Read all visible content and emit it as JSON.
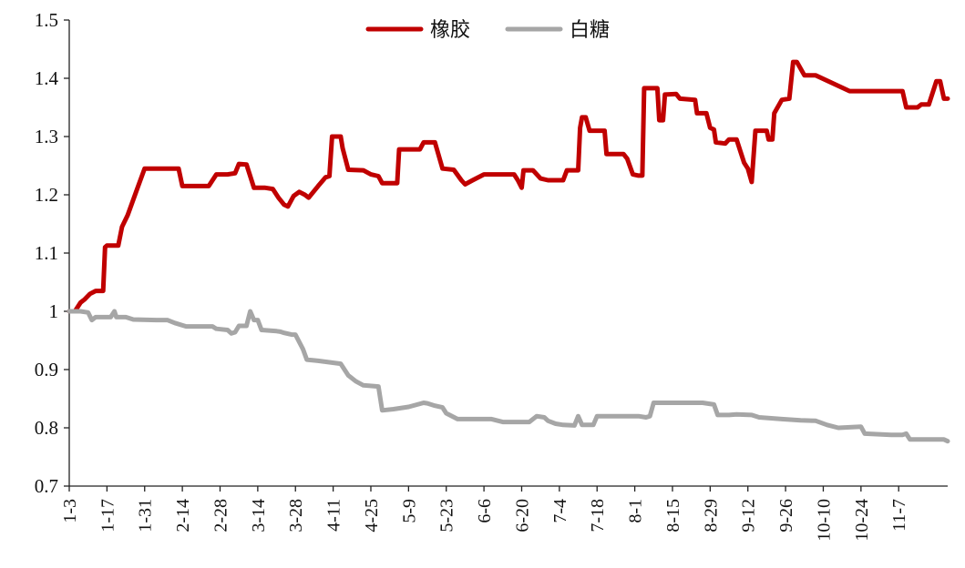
{
  "chart_data": {
    "type": "line",
    "title": "",
    "xlabel": "",
    "ylabel": "",
    "ylim": [
      0.7,
      1.5
    ],
    "yticks": [
      "0.7",
      "0.8",
      "0.9",
      "1",
      "1.1",
      "1.2",
      "1.3",
      "1.4",
      "1.5"
    ],
    "xticks": [
      "1-3",
      "1-17",
      "1-31",
      "2-14",
      "2-28",
      "3-14",
      "3-28",
      "4-11",
      "4-25",
      "5-9",
      "5-23",
      "6-6",
      "6-20",
      "7-4",
      "7-18",
      "8-1",
      "8-15",
      "8-29",
      "9-12",
      "9-26",
      "10-10",
      "10-24",
      "11-7"
    ],
    "grid": false,
    "legend_position": "top-center",
    "series": [
      {
        "name": "橡胶",
        "color": "#c00000",
        "points": [
          [
            0,
            1.0
          ],
          [
            1.5,
            1.0
          ],
          [
            3,
            1.015
          ],
          [
            4,
            1.02
          ],
          [
            5.5,
            1.03
          ],
          [
            7,
            1.035
          ],
          [
            9,
            1.035
          ],
          [
            9.5,
            1.11
          ],
          [
            10,
            1.113
          ],
          [
            13,
            1.113
          ],
          [
            14,
            1.145
          ],
          [
            15.5,
            1.165
          ],
          [
            18,
            1.21
          ],
          [
            20,
            1.245
          ],
          [
            27,
            1.245
          ],
          [
            29,
            1.245
          ],
          [
            30,
            1.215
          ],
          [
            36,
            1.215
          ],
          [
            37,
            1.215
          ],
          [
            39,
            1.235
          ],
          [
            42,
            1.235
          ],
          [
            44,
            1.237
          ],
          [
            45,
            1.253
          ],
          [
            47,
            1.252
          ],
          [
            49,
            1.212
          ],
          [
            52,
            1.212
          ],
          [
            54,
            1.21
          ],
          [
            55.5,
            1.195
          ],
          [
            57,
            1.183
          ],
          [
            58,
            1.18
          ],
          [
            59.5,
            1.198
          ],
          [
            61,
            1.205
          ],
          [
            62.5,
            1.2
          ],
          [
            63.5,
            1.195
          ],
          [
            66,
            1.215
          ],
          [
            68,
            1.23
          ],
          [
            69,
            1.232
          ],
          [
            69.7,
            1.3
          ],
          [
            71,
            1.3
          ],
          [
            72,
            1.3
          ],
          [
            72.5,
            1.28
          ],
          [
            74,
            1.243
          ],
          [
            78,
            1.242
          ],
          [
            80,
            1.235
          ],
          [
            82,
            1.232
          ],
          [
            83,
            1.22
          ],
          [
            87,
            1.22
          ],
          [
            87.5,
            1.278
          ],
          [
            93,
            1.278
          ],
          [
            94,
            1.29
          ],
          [
            97,
            1.29
          ],
          [
            99,
            1.245
          ],
          [
            102,
            1.243
          ],
          [
            104,
            1.225
          ],
          [
            105,
            1.218
          ],
          [
            107,
            1.225
          ],
          [
            110,
            1.235
          ],
          [
            116,
            1.235
          ],
          [
            118,
            1.235
          ],
          [
            119,
            1.225
          ],
          [
            120,
            1.212
          ],
          [
            120.5,
            1.242
          ],
          [
            123,
            1.242
          ],
          [
            125,
            1.228
          ],
          [
            127,
            1.225
          ],
          [
            131,
            1.225
          ],
          [
            132,
            1.242
          ],
          [
            135,
            1.242
          ],
          [
            135.5,
            1.315
          ],
          [
            136,
            1.333
          ],
          [
            137,
            1.333
          ],
          [
            138,
            1.31
          ],
          [
            142,
            1.31
          ],
          [
            142.5,
            1.27
          ],
          [
            147,
            1.27
          ],
          [
            148,
            1.262
          ],
          [
            149.5,
            1.235
          ],
          [
            151,
            1.233
          ],
          [
            152,
            1.233
          ],
          [
            152.5,
            1.383
          ],
          [
            156,
            1.383
          ],
          [
            156.5,
            1.328
          ],
          [
            157.5,
            1.328
          ],
          [
            158,
            1.372
          ],
          [
            161,
            1.373
          ],
          [
            162,
            1.365
          ],
          [
            166,
            1.363
          ],
          [
            166.5,
            1.34
          ],
          [
            169,
            1.34
          ],
          [
            170,
            1.315
          ],
          [
            171,
            1.312
          ],
          [
            171.5,
            1.29
          ],
          [
            174,
            1.288
          ],
          [
            175,
            1.295
          ],
          [
            177,
            1.295
          ],
          [
            179,
            1.255
          ],
          [
            180,
            1.245
          ],
          [
            181,
            1.222
          ],
          [
            182,
            1.31
          ],
          [
            185,
            1.31
          ],
          [
            185.5,
            1.295
          ],
          [
            186.5,
            1.295
          ],
          [
            187,
            1.34
          ],
          [
            189,
            1.363
          ],
          [
            191,
            1.365
          ],
          [
            192,
            1.428
          ],
          [
            193,
            1.428
          ],
          [
            195,
            1.405
          ],
          [
            198,
            1.405
          ],
          [
            207,
            1.378
          ],
          [
            221,
            1.378
          ],
          [
            222,
            1.35
          ],
          [
            225,
            1.35
          ],
          [
            226,
            1.355
          ],
          [
            228,
            1.355
          ],
          [
            230,
            1.395
          ],
          [
            231,
            1.395
          ],
          [
            232,
            1.365
          ],
          [
            233,
            1.365
          ]
        ]
      },
      {
        "name": "白糖",
        "color": "#a6a6a6",
        "points": [
          [
            0,
            1.0
          ],
          [
            3,
            1.0
          ],
          [
            5,
            0.998
          ],
          [
            6,
            0.985
          ],
          [
            7,
            0.99
          ],
          [
            11,
            0.99
          ],
          [
            12,
            1.0
          ],
          [
            12.5,
            0.99
          ],
          [
            15,
            0.99
          ],
          [
            17,
            0.986
          ],
          [
            23,
            0.985
          ],
          [
            26,
            0.985
          ],
          [
            28,
            0.98
          ],
          [
            31,
            0.974
          ],
          [
            38,
            0.974
          ],
          [
            39,
            0.97
          ],
          [
            42,
            0.968
          ],
          [
            43,
            0.962
          ],
          [
            44,
            0.964
          ],
          [
            45,
            0.975
          ],
          [
            47,
            0.975
          ],
          [
            48,
            1.0
          ],
          [
            49,
            0.985
          ],
          [
            50,
            0.985
          ],
          [
            51,
            0.968
          ],
          [
            55,
            0.966
          ],
          [
            56,
            0.965
          ],
          [
            57,
            0.963
          ],
          [
            59,
            0.96
          ],
          [
            60,
            0.96
          ],
          [
            62,
            0.935
          ],
          [
            63,
            0.917
          ],
          [
            66,
            0.915
          ],
          [
            72,
            0.91
          ],
          [
            74,
            0.89
          ],
          [
            76,
            0.88
          ],
          [
            78,
            0.873
          ],
          [
            82,
            0.871
          ],
          [
            83,
            0.83
          ],
          [
            86,
            0.832
          ],
          [
            90,
            0.836
          ],
          [
            94,
            0.843
          ],
          [
            95,
            0.842
          ],
          [
            97,
            0.838
          ],
          [
            99,
            0.835
          ],
          [
            100,
            0.825
          ],
          [
            103,
            0.815
          ],
          [
            112,
            0.815
          ],
          [
            115,
            0.81
          ],
          [
            122,
            0.81
          ],
          [
            124,
            0.82
          ],
          [
            126,
            0.818
          ],
          [
            127,
            0.812
          ],
          [
            129,
            0.807
          ],
          [
            131,
            0.805
          ],
          [
            134,
            0.804
          ],
          [
            135,
            0.82
          ],
          [
            136,
            0.805
          ],
          [
            139,
            0.805
          ],
          [
            140,
            0.82
          ],
          [
            151,
            0.82
          ],
          [
            153,
            0.818
          ],
          [
            154,
            0.82
          ],
          [
            155,
            0.843
          ],
          [
            168,
            0.843
          ],
          [
            171,
            0.84
          ],
          [
            172,
            0.822
          ],
          [
            175,
            0.822
          ],
          [
            177,
            0.823
          ],
          [
            181,
            0.822
          ],
          [
            183,
            0.818
          ],
          [
            189,
            0.815
          ],
          [
            194,
            0.813
          ],
          [
            198,
            0.812
          ],
          [
            201,
            0.805
          ],
          [
            204,
            0.8
          ],
          [
            210,
            0.802
          ],
          [
            211,
            0.79
          ],
          [
            218,
            0.788
          ],
          [
            221,
            0.788
          ],
          [
            222,
            0.79
          ],
          [
            223,
            0.78
          ],
          [
            228,
            0.78
          ],
          [
            232,
            0.78
          ],
          [
            233,
            0.777
          ]
        ]
      }
    ]
  }
}
